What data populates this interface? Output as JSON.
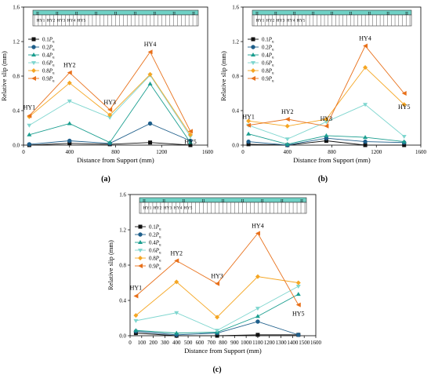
{
  "colors": {
    "s1": "#111111",
    "s2": "#1f5f8b",
    "s3": "#1a9e8f",
    "s4": "#7fd6cf",
    "s5": "#f5a623",
    "s6": "#e8701a",
    "beam_fill": "#6fd1c5",
    "hy_text": "#d9534f"
  },
  "legend_entries": [
    {
      "base": "0.1",
      "sub": "u",
      "marker": "square"
    },
    {
      "base": "0.2",
      "sub": "u",
      "marker": "circle"
    },
    {
      "base": "0.4",
      "sub": "u",
      "marker": "triangle-up"
    },
    {
      "base": "0.6",
      "sub": "u",
      "marker": "triangle-down"
    },
    {
      "base": "0.8",
      "sub": "u",
      "marker": "diamond"
    },
    {
      "base": "0.9",
      "sub": "u",
      "marker": "triangle-left"
    }
  ],
  "beam": {
    "section_labels": [
      "HY1",
      "HY2",
      "HY3",
      "HY4",
      "HY5"
    ]
  },
  "chart_data": [
    {
      "panel": "(a)",
      "type": "line",
      "xlabel": "Distance from Support (mm)",
      "ylabel": "Relative slip (mm)",
      "xlim": [
        0,
        1600
      ],
      "ylim": [
        0,
        1.6
      ],
      "xticks": [
        0,
        400,
        800,
        1200,
        1600
      ],
      "yticks": [
        0.0,
        0.4,
        0.8,
        1.2,
        1.6
      ],
      "x": [
        50,
        400,
        750,
        1100,
        1450
      ],
      "point_labels": [
        "HY1",
        "HY2",
        "HY3",
        "HY4",
        "HY5"
      ],
      "series": [
        {
          "name": "0.1Pu",
          "values": [
            0.0,
            0.02,
            0.01,
            0.03,
            0.0
          ]
        },
        {
          "name": "0.2Pu",
          "values": [
            0.01,
            0.05,
            0.02,
            0.25,
            0.05
          ]
        },
        {
          "name": "0.4Pu",
          "values": [
            0.12,
            0.25,
            0.03,
            0.71,
            0.03
          ]
        },
        {
          "name": "0.6Pu",
          "values": [
            0.23,
            0.51,
            0.32,
            0.81,
            0.1
          ]
        },
        {
          "name": "0.8Pu",
          "values": [
            0.33,
            0.72,
            0.35,
            0.82,
            0.12
          ]
        },
        {
          "name": "0.9Pu",
          "values": [
            0.34,
            0.84,
            0.41,
            1.08,
            0.16
          ]
        }
      ]
    },
    {
      "panel": "(b)",
      "type": "line",
      "xlabel": "Distance from Support (mm)",
      "ylabel": "Relative slip (mm)",
      "xlim": [
        0,
        1600
      ],
      "ylim": [
        0,
        1.6
      ],
      "xticks": [
        0,
        400,
        800,
        1200,
        1600
      ],
      "yticks": [
        0.0,
        0.4,
        0.8,
        1.2,
        1.6
      ],
      "x": [
        50,
        400,
        750,
        1100,
        1450
      ],
      "point_labels": [
        "HY1",
        "HY2",
        "HY3",
        "HY4",
        "HY5"
      ],
      "series": [
        {
          "name": "0.1Pu",
          "values": [
            0.01,
            0.0,
            0.05,
            0.0,
            0.0
          ]
        },
        {
          "name": "0.2Pu",
          "values": [
            0.04,
            0.0,
            0.08,
            0.04,
            0.03
          ]
        },
        {
          "name": "0.4Pu",
          "values": [
            0.13,
            0.01,
            0.11,
            0.09,
            0.04
          ]
        },
        {
          "name": "0.6Pu",
          "values": [
            0.23,
            0.07,
            0.27,
            0.47,
            0.1
          ]
        },
        {
          "name": "0.8Pu",
          "values": [
            0.28,
            0.22,
            0.3,
            0.9,
            0.47
          ]
        },
        {
          "name": "0.9Pu",
          "values": [
            0.23,
            0.3,
            0.22,
            1.15,
            0.6
          ]
        }
      ]
    },
    {
      "panel": "(c)",
      "type": "line",
      "xlabel": "Distance from Support (mm)",
      "ylabel": "Relative slip (mm)",
      "xlim": [
        0,
        1600
      ],
      "ylim": [
        0,
        1.6
      ],
      "xticks": [
        0,
        100,
        200,
        300,
        400,
        500,
        600,
        700,
        800,
        900,
        1000,
        1100,
        1200,
        1300,
        1400,
        1500,
        1600
      ],
      "yticks": [
        0.0,
        0.4,
        0.8,
        1.2,
        1.6
      ],
      "x": [
        50,
        400,
        750,
        1100,
        1450
      ],
      "point_labels": [
        "HY1",
        "HY2",
        "HY3",
        "HY4",
        "HY5"
      ],
      "series": [
        {
          "name": "0.1Pu",
          "values": [
            0.03,
            0.0,
            0.0,
            0.01,
            0.01
          ]
        },
        {
          "name": "0.2Pu",
          "values": [
            0.05,
            0.01,
            0.03,
            0.16,
            0.01
          ]
        },
        {
          "name": "0.4Pu",
          "values": [
            0.06,
            0.03,
            0.04,
            0.22,
            0.47
          ]
        },
        {
          "name": "0.6Pu",
          "values": [
            0.17,
            0.26,
            0.06,
            0.31,
            0.56
          ]
        },
        {
          "name": "0.8Pu",
          "values": [
            0.23,
            0.61,
            0.21,
            0.67,
            0.6
          ]
        },
        {
          "name": "0.9Pu",
          "values": [
            0.45,
            0.85,
            0.59,
            1.16,
            0.35
          ]
        }
      ]
    }
  ]
}
